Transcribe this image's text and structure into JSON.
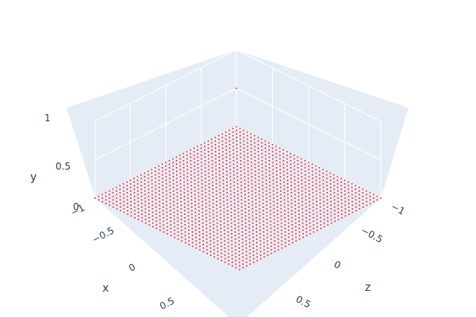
{
  "chart_data": {
    "type": "scatter3d",
    "title": "",
    "marker_color": "#ff0000",
    "background_color": "#e5ecf6",
    "grid": true,
    "x_axis": {
      "title": "x",
      "range": [
        -1,
        1
      ],
      "ticks": [
        "−1",
        "−0.5",
        "0",
        "0.5"
      ]
    },
    "y_axis": {
      "title": "y",
      "range": [
        0,
        1
      ],
      "ticks": [
        "0",
        "0.5",
        "1"
      ]
    },
    "z_axis": {
      "title": "z",
      "range": [
        -1,
        1
      ],
      "ticks": [
        "−1",
        "−0.5",
        "0",
        "0.5"
      ]
    },
    "grid_points": {
      "x": {
        "start": -1,
        "end": 1,
        "count": 41
      },
      "z": {
        "start": -1,
        "end": 1,
        "count": 41
      },
      "y": 0
    },
    "extra_points": [
      {
        "x": -1,
        "y": 0.5,
        "z": -1
      }
    ]
  }
}
